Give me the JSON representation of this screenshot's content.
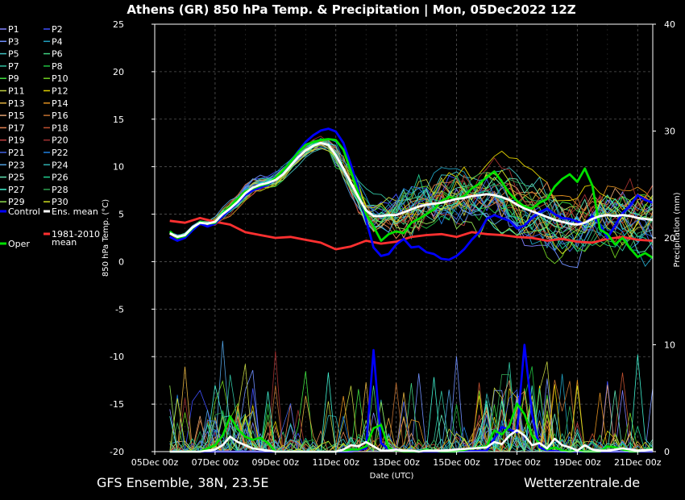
{
  "chart_data": {
    "type": "line",
    "title": "Athens  (GR)  850 hPa Temp. & Precipitation | Mon, 05Dec2022 12Z",
    "xlabel": "Date (UTC)",
    "ylabel": "850 hPa Temp. (°C)",
    "y2label": "Precipitation (mm)",
    "ylim": [
      -20,
      25
    ],
    "y2lim": [
      0,
      40
    ],
    "yticks": [
      "25",
      "20",
      "15",
      "10",
      "5",
      "0",
      "-5",
      "-10",
      "-15",
      "-20"
    ],
    "y2ticks": [
      "40",
      "30",
      "20",
      "10",
      "0"
    ],
    "x_ticks": [
      {
        "label": "05Dec 00z",
        "day": 0
      },
      {
        "label": "07Dec 00z",
        "day": 2
      },
      {
        "label": "09Dec 00z",
        "day": 4
      },
      {
        "label": "11Dec 00z",
        "day": 6
      },
      {
        "label": "13Dec 00z",
        "day": 8
      },
      {
        "label": "15Dec 00z",
        "day": 10
      },
      {
        "label": "17Dec 00z",
        "day": 12
      },
      {
        "label": "19Dec 00z",
        "day": 14
      },
      {
        "label": "21Dec 00z",
        "day": 16
      }
    ],
    "xlim_days": [
      0,
      16.5
    ],
    "grid": true,
    "legend_position": "left",
    "legend": [
      {
        "label": "P1",
        "color": "#8080ff"
      },
      {
        "label": "P2",
        "color": "#4050ff"
      },
      {
        "label": "P3",
        "color": "#7090ff"
      },
      {
        "label": "P4",
        "color": "#20a0c0"
      },
      {
        "label": "P5",
        "color": "#40c0c0"
      },
      {
        "label": "P6",
        "color": "#40d080"
      },
      {
        "label": "P7",
        "color": "#30c0a0"
      },
      {
        "label": "P8",
        "color": "#20c040"
      },
      {
        "label": "P9",
        "color": "#40e040"
      },
      {
        "label": "P10",
        "color": "#70d020"
      },
      {
        "label": "P11",
        "color": "#c0d040"
      },
      {
        "label": "P12",
        "color": "#e0d000"
      },
      {
        "label": "P13",
        "color": "#e0b040"
      },
      {
        "label": "P14",
        "color": "#e09020"
      },
      {
        "label": "P15",
        "color": "#e0a070"
      },
      {
        "label": "P16",
        "color": "#c07030"
      },
      {
        "label": "P17",
        "color": "#e08050"
      },
      {
        "label": "P18",
        "color": "#c05030"
      },
      {
        "label": "P19",
        "color": "#c04040"
      },
      {
        "label": "P20",
        "color": "#a03030"
      },
      {
        "label": "P21",
        "color": "#4060e0"
      },
      {
        "label": "P22",
        "color": "#2080e0"
      },
      {
        "label": "P23",
        "color": "#50a0e0"
      },
      {
        "label": "P24",
        "color": "#30b0b0"
      },
      {
        "label": "P25",
        "color": "#60e0b0"
      },
      {
        "label": "P26",
        "color": "#20d090"
      },
      {
        "label": "P27",
        "color": "#40f0d0"
      },
      {
        "label": "P28",
        "color": "#30a050"
      },
      {
        "label": "P29",
        "color": "#90e050"
      },
      {
        "label": "P30",
        "color": "#d0e020"
      },
      {
        "label": "Control",
        "color": "#0000ff",
        "thick": true
      },
      {
        "label": "Ens. mean",
        "color": "#ffffff",
        "thick": true
      },
      {
        "label": "Oper",
        "color": "#00e000",
        "thick": true
      },
      {
        "label": "1981-2010\nmean",
        "color": "#ff3030",
        "thick": true
      }
    ],
    "series": [
      {
        "name": "Ens. mean",
        "color": "#ffffff",
        "width": 2.8,
        "x": [
          0.5,
          0.75,
          1,
          1.25,
          1.5,
          1.75,
          2,
          2.25,
          2.5,
          2.75,
          3,
          3.25,
          3.5,
          3.75,
          4,
          4.25,
          4.5,
          4.75,
          5,
          5.25,
          5.5,
          5.75,
          6,
          6.25,
          6.5,
          6.75,
          7,
          7.25,
          7.5,
          7.75,
          8,
          8.25,
          8.5,
          8.75,
          9,
          9.25,
          9.5,
          9.75,
          10,
          10.25,
          10.5,
          10.75,
          11,
          11.25,
          11.5,
          11.75,
          12,
          12.25,
          12.5,
          12.75,
          13,
          13.25,
          13.5,
          13.75,
          14,
          14.25,
          14.5,
          14.75,
          15,
          15.25,
          15.5,
          15.75,
          16,
          16.25,
          16.5
        ],
        "y": [
          3,
          2.6,
          2.8,
          3.6,
          4.1,
          4,
          4.2,
          5,
          5.6,
          6.3,
          7.2,
          7.8,
          8.1,
          8.3,
          8.6,
          9.2,
          10.1,
          11,
          11.7,
          12.2,
          12.5,
          12.3,
          11.2,
          9.8,
          8.3,
          6.8,
          5.4,
          4.8,
          4.8,
          4.9,
          4.9,
          5.2,
          5.5,
          5.8,
          6,
          6.1,
          6.2,
          6.4,
          6.6,
          6.7,
          6.9,
          7,
          7.1,
          7,
          6.8,
          6.5,
          6,
          5.6,
          5.3,
          5,
          4.7,
          4.4,
          4.2,
          4,
          3.9,
          4.1,
          4.5,
          4.8,
          4.9,
          4.8,
          4.9,
          4.8,
          4.6,
          4.5,
          4.4
        ]
      },
      {
        "name": "Oper",
        "color": "#00e000",
        "width": 2.8,
        "x": [
          0.5,
          0.75,
          1,
          1.25,
          1.5,
          1.75,
          2,
          2.25,
          2.5,
          2.75,
          3,
          3.25,
          3.5,
          3.75,
          4,
          4.25,
          4.5,
          4.75,
          5,
          5.25,
          5.5,
          5.75,
          6,
          6.25,
          6.5,
          6.75,
          7,
          7.25,
          7.5,
          7.75,
          8,
          8.25,
          8.5,
          8.75,
          9,
          9.25,
          9.5,
          9.75,
          10,
          10.25,
          10.5,
          10.75,
          11,
          11.25,
          11.5,
          11.75,
          12,
          12.25,
          12.5,
          12.75,
          13,
          13.25,
          13.5,
          13.75,
          14,
          14.25,
          14.5,
          14.75,
          15,
          15.25,
          15.5,
          15.75,
          16,
          16.25,
          16.5
        ],
        "y": [
          3.2,
          2.5,
          2.7,
          3.5,
          4.2,
          4,
          4.1,
          5.1,
          5.8,
          6.6,
          7.4,
          7.7,
          8,
          8.2,
          8.8,
          9.6,
          10.5,
          11.5,
          12.3,
          12.6,
          12.8,
          12.9,
          12.8,
          11.8,
          9.5,
          7.2,
          5,
          3.7,
          2.2,
          2.9,
          3.2,
          3,
          4.1,
          4.5,
          5,
          5.5,
          6.4,
          6.8,
          6.6,
          6.9,
          7.7,
          8.2,
          8.9,
          9.5,
          8.4,
          7.2,
          6.4,
          5.8,
          5.6,
          6.2,
          6.6,
          7.9,
          8.7,
          9.2,
          8.4,
          9.8,
          8,
          3.4,
          2.9,
          1.8,
          2.5,
          1.4,
          0.5,
          0.9,
          0.4
        ]
      },
      {
        "name": "Control",
        "color": "#0000ff",
        "width": 2.8,
        "x": [
          0.5,
          0.75,
          1,
          1.25,
          1.5,
          1.75,
          2,
          2.25,
          2.5,
          2.75,
          3,
          3.25,
          3.5,
          3.75,
          4,
          4.25,
          4.5,
          4.75,
          5,
          5.25,
          5.5,
          5.75,
          6,
          6.25,
          6.5,
          6.75,
          7,
          7.25,
          7.5,
          7.75,
          8,
          8.25,
          8.5,
          8.75,
          9,
          9.25,
          9.5,
          9.75,
          10,
          10.25,
          10.5,
          10.75,
          11,
          11.25,
          11.5,
          11.75,
          12,
          12.25,
          12.5,
          12.75,
          13,
          13.25,
          13.5,
          13.75,
          14,
          14.25,
          14.5,
          14.75,
          15,
          15.25,
          15.5,
          15.75,
          16,
          16.25,
          16.5
        ],
        "y": [
          2.6,
          2.2,
          2.5,
          3.3,
          4,
          3.7,
          4,
          4.8,
          5.5,
          6.2,
          7,
          7.5,
          7.8,
          8.1,
          8.7,
          9.5,
          10.5,
          11.6,
          12.6,
          13.3,
          13.8,
          14,
          13.7,
          12.5,
          10.2,
          7.6,
          4.4,
          1.5,
          0.6,
          0.8,
          1.8,
          2.4,
          1.5,
          1.6,
          1,
          0.8,
          0.3,
          0.2,
          0.6,
          1.3,
          2.3,
          3.1,
          4.5,
          4.9,
          4.6,
          4.3,
          3.5,
          3.8,
          4.6,
          5.2,
          5.6,
          5,
          4.6,
          4.5,
          4.2,
          4,
          4.8,
          3.9,
          2.5,
          3.8,
          5.1,
          5.9,
          7,
          6.5,
          6.2
        ]
      },
      {
        "name": "1981-2010\nmean",
        "color": "#ff3030",
        "width": 2.8,
        "x": [
          0.5,
          1,
          1.5,
          2,
          2.5,
          3,
          3.5,
          4,
          4.5,
          5,
          5.5,
          6,
          6.5,
          7,
          7.5,
          8,
          8.5,
          9,
          9.5,
          10,
          10.5,
          11,
          11.5,
          12,
          12.5,
          13,
          13.5,
          14,
          14.5,
          15,
          15.5,
          16,
          16.5
        ],
        "y": [
          4.3,
          4.1,
          4.6,
          4.2,
          3.9,
          3.1,
          2.8,
          2.5,
          2.6,
          2.3,
          2,
          1.3,
          1.6,
          2.2,
          1.9,
          2.1,
          2.6,
          2.8,
          2.9,
          2.6,
          3.1,
          2.9,
          2.8,
          2.6,
          2.5,
          2.2,
          2.4,
          2.1,
          2,
          2.4,
          2.6,
          2.3,
          2.2
        ]
      }
    ],
    "precip_series": [
      {
        "name": "Ens. mean",
        "color": "#ffffff",
        "width": 2.6,
        "x": [
          0.5,
          1,
          1.5,
          1.75,
          2,
          2.25,
          2.5,
          2.75,
          3,
          3.25,
          3.5,
          3.75,
          4,
          4.5,
          5,
          5.5,
          6,
          6.25,
          6.5,
          6.75,
          7,
          7.25,
          7.5,
          7.75,
          8,
          8.25,
          8.5,
          8.75,
          9,
          9.5,
          10,
          10.5,
          11,
          11.25,
          11.5,
          11.75,
          12,
          12.25,
          12.5,
          12.75,
          13,
          13.25,
          13.5,
          13.75,
          14,
          14.25,
          14.5,
          14.75,
          15,
          15.25,
          15.5,
          15.75,
          16,
          16.5
        ],
        "y": [
          0,
          0,
          0,
          0.1,
          0.2,
          0.6,
          1.4,
          0.9,
          0.6,
          0.3,
          0.2,
          0.1,
          0,
          0,
          0,
          0,
          0,
          0.2,
          0.6,
          0.5,
          0.9,
          0.5,
          0.1,
          0.1,
          0.2,
          0.1,
          0.1,
          0,
          0.1,
          0.1,
          0.2,
          0.3,
          0.4,
          0.9,
          0.7,
          1.5,
          2,
          1.5,
          0.6,
          0.8,
          0.3,
          1.2,
          0.6,
          0.4,
          0.1,
          0.6,
          0.2,
          0.1,
          0.1,
          0.2,
          0.3,
          0.2,
          0.1,
          0.2
        ]
      },
      {
        "name": "Oper",
        "color": "#00e000",
        "width": 2.6,
        "x": [
          0.5,
          1,
          1.5,
          1.75,
          2,
          2.25,
          2.5,
          2.75,
          3,
          3.25,
          3.5,
          3.75,
          4,
          4.5,
          5,
          5.5,
          6,
          6.25,
          6.5,
          6.75,
          7,
          7.25,
          7.5,
          7.75,
          8,
          8.25,
          8.5,
          8.75,
          9,
          9.5,
          10,
          10.5,
          11,
          11.25,
          11.5,
          11.75,
          12,
          12.25,
          12.5,
          12.75,
          13,
          13.25,
          13.5,
          13.75,
          14,
          14.25,
          14.5,
          14.75,
          15,
          15.25,
          15.5,
          15.75,
          16,
          16.5
        ],
        "y": [
          0,
          0,
          0,
          0.3,
          0.6,
          1.5,
          3.3,
          2.1,
          1.4,
          1.1,
          1.3,
          0.8,
          0,
          0,
          0,
          0,
          0,
          0.1,
          0.2,
          0.2,
          0.5,
          2.2,
          2.5,
          0.3,
          0.1,
          0,
          0,
          0,
          0.2,
          0,
          0,
          0.3,
          0.5,
          2,
          1.6,
          2.4,
          4.5,
          3.5,
          1.5,
          0.8,
          0.2,
          0.4,
          0.1,
          0,
          0.1,
          0,
          0,
          0,
          0.5,
          0.4,
          0.2,
          0,
          0,
          0.3
        ]
      },
      {
        "name": "Control",
        "color": "#0000ff",
        "width": 2.6,
        "x": [
          0.5,
          1,
          2,
          3,
          4,
          5,
          6,
          6.5,
          7,
          7.25,
          7.5,
          7.75,
          8,
          8.5,
          9,
          10,
          11,
          11.5,
          12,
          12.25,
          12.5,
          12.75,
          13,
          13.5,
          14,
          15,
          16,
          16.5
        ],
        "y": [
          0,
          0,
          0,
          0,
          0,
          0,
          0,
          0,
          0.3,
          9.5,
          0.8,
          0.2,
          0.2,
          0,
          0,
          0,
          0.1,
          2.3,
          1.8,
          10,
          3.5,
          0.4,
          0.1,
          0,
          0,
          0,
          0,
          0
        ]
      }
    ],
    "annotations": [],
    "credits": {
      "left": "GFS Ensemble, 38N, 23.5E",
      "right": "Wetterzentrale.de"
    }
  }
}
